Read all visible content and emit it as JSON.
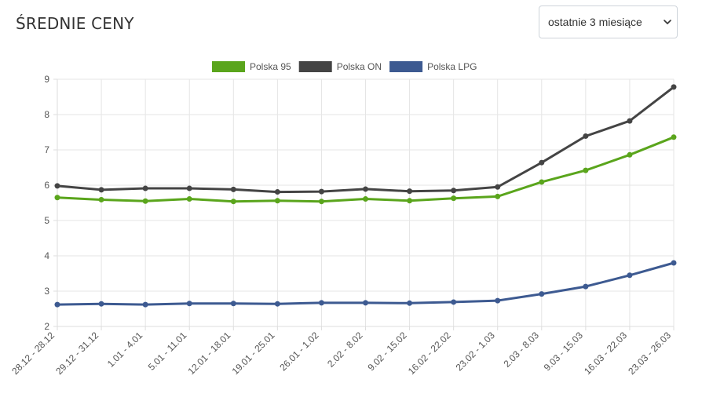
{
  "header": {
    "title": "ŚREDNIE CENY",
    "period_select": {
      "value": "ostatnie 3 miesiące",
      "icon": "chevron-down-icon"
    }
  },
  "chart_data": {
    "type": "line",
    "title": "",
    "xlabel": "",
    "ylabel": "",
    "ylim": [
      2,
      9
    ],
    "yticks": [
      "2",
      "3",
      "4",
      "5",
      "6",
      "7",
      "8",
      "9"
    ],
    "grid": true,
    "legend_position": "top",
    "categories": [
      "28.12 - 28.12",
      "29.12 - 31.12",
      "1.01 - 4.01",
      "5.01 - 11.01",
      "12.01 - 18.01",
      "19.01 - 25.01",
      "26.01 - 1.02",
      "2.02 - 8.02",
      "9.02 - 15.02",
      "16.02 - 22.02",
      "23.02 - 1.03",
      "2.03 - 8.03",
      "9.03 - 15.03",
      "16.03 - 22.03",
      "23.03 - 26.03"
    ],
    "series": [
      {
        "name": "Polska 95",
        "color": "#5aa51c",
        "values": [
          5.65,
          5.59,
          5.55,
          5.61,
          5.54,
          5.56,
          5.54,
          5.61,
          5.56,
          5.63,
          5.68,
          6.09,
          6.42,
          6.86,
          7.36
        ]
      },
      {
        "name": "Polska ON",
        "color": "#444444",
        "values": [
          5.98,
          5.87,
          5.91,
          5.91,
          5.88,
          5.81,
          5.82,
          5.89,
          5.83,
          5.85,
          5.95,
          6.64,
          7.39,
          7.82,
          8.78
        ]
      },
      {
        "name": "Polska LPG",
        "color": "#3d5a91",
        "values": [
          2.62,
          2.64,
          2.62,
          2.65,
          2.65,
          2.64,
          2.67,
          2.67,
          2.66,
          2.69,
          2.73,
          2.92,
          3.13,
          3.45,
          3.8
        ]
      }
    ]
  }
}
